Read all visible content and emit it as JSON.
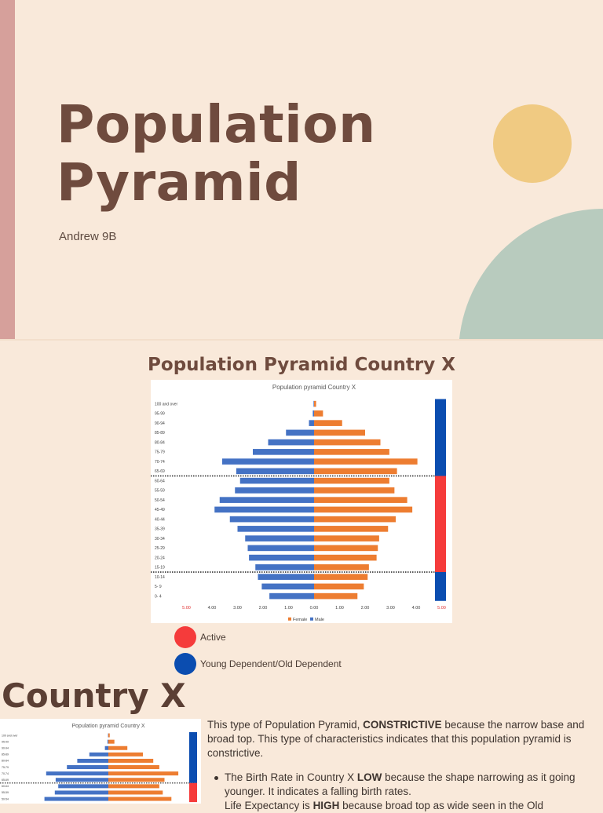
{
  "slide1": {
    "title_line1": "Population",
    "title_line2": "Pyramid",
    "author": "Andrew 9B",
    "colors": {
      "accent_bar": "#d6a09b",
      "circle_yellow": "#f0ca82",
      "circle_green": "#b8cbbe",
      "title": "#6f4b3e"
    }
  },
  "slide2": {
    "heading": "Population Pyramid Country X",
    "legend": [
      {
        "label": "Active",
        "color": "#f53b3b"
      },
      {
        "label": "Young Dependent/Old Dependent",
        "color": "#0b4db0"
      }
    ]
  },
  "chart_data": {
    "type": "bar",
    "orientation": "horizontal",
    "title": "Population pyramid Country X",
    "categories": [
      "100 and over",
      "95-99",
      "90-94",
      "85-89",
      "80-84",
      "75-79",
      "70-74",
      "65-69",
      "60-64",
      "55-59",
      "50-54",
      "45-49",
      "40-44",
      "35-39",
      "30-34",
      "25-29",
      "20-24",
      "15-19",
      "10-14",
      "5- 9",
      "0- 4"
    ],
    "series": [
      {
        "name": "Male",
        "color": "#4472c4",
        "values": [
          0.02,
          0.05,
          0.2,
          1.1,
          1.8,
          2.4,
          3.6,
          3.05,
          2.9,
          3.1,
          3.7,
          3.9,
          3.3,
          3.0,
          2.7,
          2.6,
          2.55,
          2.3,
          2.2,
          2.05,
          1.75
        ]
      },
      {
        "name": "Female",
        "color": "#ed7d31",
        "values": [
          0.08,
          0.35,
          1.1,
          2.0,
          2.6,
          2.95,
          4.05,
          3.25,
          2.95,
          3.15,
          3.65,
          3.85,
          3.2,
          2.9,
          2.55,
          2.5,
          2.45,
          2.15,
          2.1,
          1.95,
          1.7
        ]
      }
    ],
    "x_ticks": [
      "5.00",
      "4.00",
      "3.00",
      "2.00",
      "1.00",
      "0.00",
      "1.00",
      "2.00",
      "3.00",
      "4.00",
      "5.00"
    ],
    "xlim": [
      -5,
      5
    ],
    "legend_text": [
      "Female",
      "Male"
    ],
    "legend_placement": "bottom",
    "dividers": [
      "60-64",
      "10-14"
    ],
    "side_band": [
      {
        "from": "100 and over",
        "to": "65-69",
        "group": "Old Dependent",
        "color": "#0b4db0"
      },
      {
        "from": "60-64",
        "to": "15-19",
        "group": "Active",
        "color": "#f53b3b"
      },
      {
        "from": "10-14",
        "to": "0- 4",
        "group": "Young Dependent",
        "color": "#0b4db0"
      }
    ]
  },
  "slide3": {
    "heading": "Country X",
    "thumb_title": "Population pyramid Country X",
    "thumb_labels": [
      "100 and over",
      "95-99",
      "90-94",
      "85-89",
      "80-84",
      "75-79",
      "70-74",
      "65-69",
      "60-64",
      "55-59",
      "50-54"
    ],
    "para_pre": "This type of Population Pyramid, ",
    "para_bold": "CONSTRICTIVE",
    "para_post": " because the narrow base and broad top. This type of characteristics indicates that this population pyramid is constrictive.",
    "bullet1_pre": "The Birth Rate in Country X ",
    "bullet1_bold": "LOW",
    "bullet1_post": " because the shape narrowing as it going younger. It indicates a falling birth rates.",
    "bullet2_pre": "Life Expectancy is ",
    "bullet2_bold": "HIGH",
    "bullet2_post": " because broad top as wide seen in the Old"
  }
}
